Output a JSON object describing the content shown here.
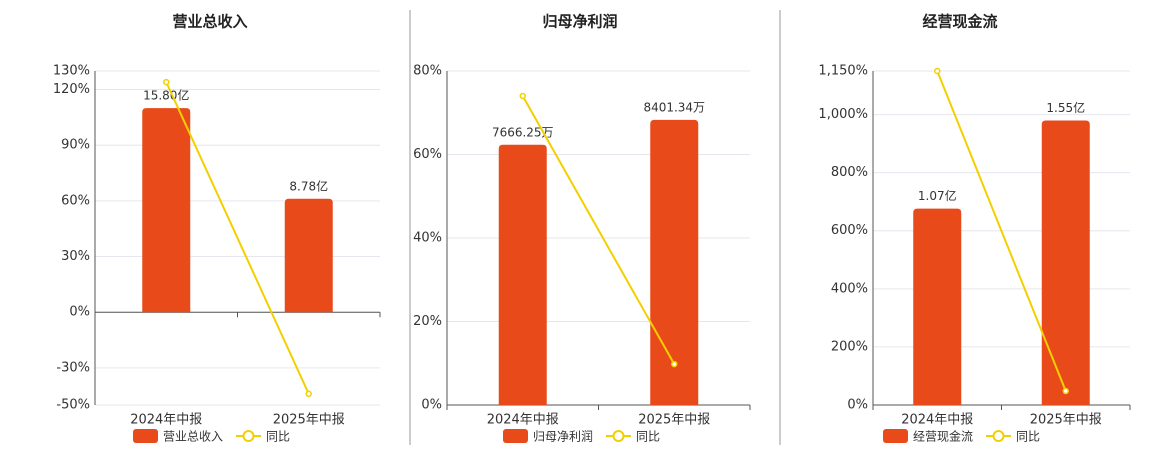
{
  "chart_data": [
    {
      "type": "bar-line",
      "title": "营业总收入",
      "categories": [
        "2024年中报",
        "2025年中报"
      ],
      "ylim": [
        -50,
        130
      ],
      "yticks": [
        {
          "value": -50,
          "label": "-50%"
        },
        {
          "value": -30,
          "label": "-30%"
        },
        {
          "value": 0,
          "label": "0%"
        },
        {
          "value": 30,
          "label": "30%"
        },
        {
          "value": 60,
          "label": "60%"
        },
        {
          "value": 90,
          "label": "90%"
        },
        {
          "value": 120,
          "label": "120%"
        },
        {
          "value": 130,
          "label": "130%"
        }
      ],
      "y2lim": [
        -7.18,
        18.67
      ],
      "grid": true,
      "series": [
        {
          "name": "营业总收入",
          "type": "bar",
          "axis": "y2",
          "color": "#e84a1a",
          "values": [
            15.8,
            8.78
          ],
          "value_labels": [
            "15.80亿",
            "8.78亿"
          ]
        },
        {
          "name": "同比",
          "type": "line",
          "color": "#f2d000",
          "values": [
            124,
            -44
          ]
        }
      ]
    },
    {
      "type": "bar-line",
      "title": "归母净利润",
      "categories": [
        "2024年中报",
        "2025年中报"
      ],
      "ylim": [
        0,
        80
      ],
      "yticks": [
        {
          "value": 0,
          "label": "0%"
        },
        {
          "value": 20,
          "label": "20%"
        },
        {
          "value": 40,
          "label": "40%"
        },
        {
          "value": 60,
          "label": "60%"
        },
        {
          "value": 80,
          "label": "80%"
        }
      ],
      "y2lim": [
        0,
        9840
      ],
      "grid": true,
      "series": [
        {
          "name": "归母净利润",
          "type": "bar",
          "axis": "y2",
          "color": "#e84a1a",
          "values": [
            7666.25,
            8401.34
          ],
          "value_labels": [
            "7666.25万",
            "8401.34万"
          ]
        },
        {
          "name": "同比",
          "type": "line",
          "color": "#f2d000",
          "values": [
            74,
            9.8
          ]
        }
      ]
    },
    {
      "type": "bar-line",
      "title": "经营现金流",
      "categories": [
        "2024年中报",
        "2025年中报"
      ],
      "ylim": [
        0,
        1150
      ],
      "yticks": [
        {
          "value": 0,
          "label": "0%"
        },
        {
          "value": 200,
          "label": "200%"
        },
        {
          "value": 400,
          "label": "400%"
        },
        {
          "value": 600,
          "label": "600%"
        },
        {
          "value": 800,
          "label": "800%"
        },
        {
          "value": 1000,
          "label": "1,000%"
        },
        {
          "value": 1150,
          "label": "1,150%"
        }
      ],
      "y2lim": [
        0,
        1.82
      ],
      "grid": true,
      "series": [
        {
          "name": "经营现金流",
          "type": "bar",
          "axis": "y2",
          "color": "#e84a1a",
          "values": [
            1.07,
            1.55
          ],
          "value_labels": [
            "1.07亿",
            "1.55亿"
          ]
        },
        {
          "name": "同比",
          "type": "line",
          "color": "#f2d000",
          "values": [
            1150,
            48
          ]
        }
      ]
    }
  ]
}
